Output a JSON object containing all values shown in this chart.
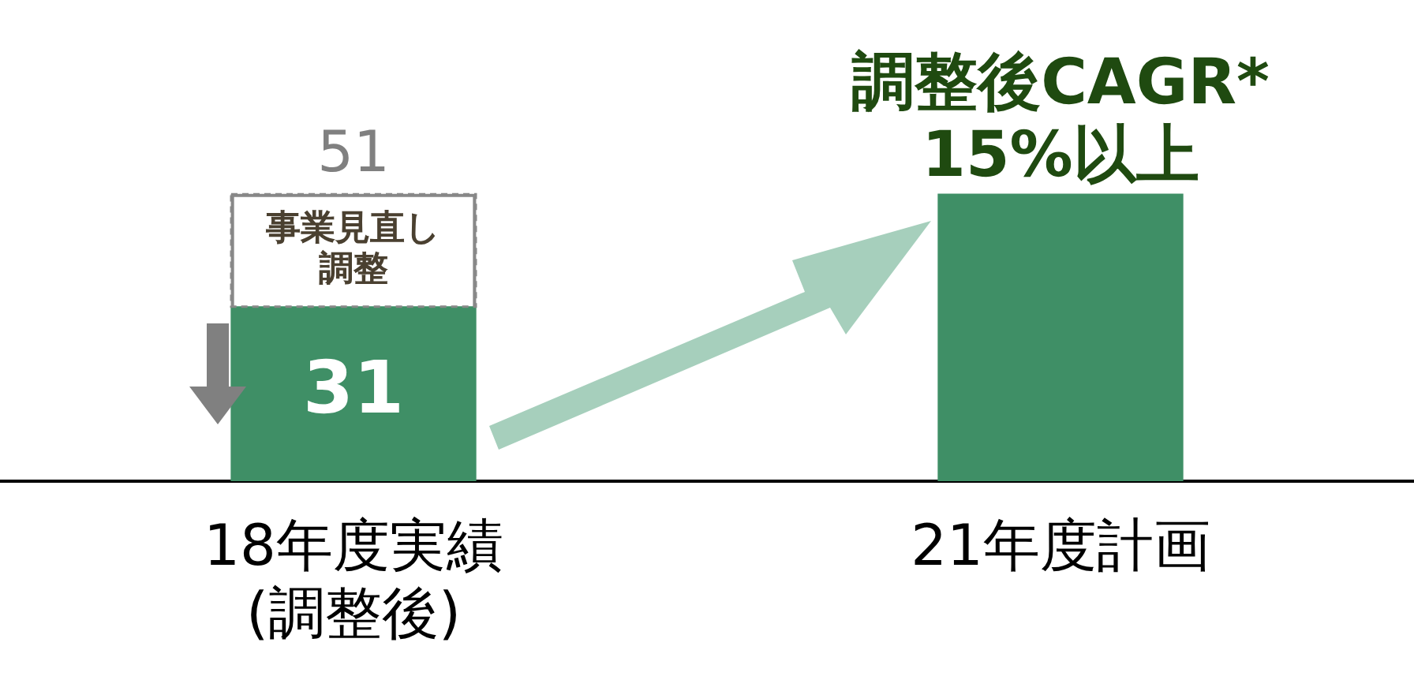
{
  "chart_data": {
    "type": "bar",
    "stacked": true,
    "categories": [
      "18年度実績\n(調整後)",
      "21年度計画"
    ],
    "series": [
      {
        "color": "#3f8f66",
        "values": [
          31,
          51
        ],
        "value_labels": [
          "31",
          null
        ]
      },
      {
        "color": "#888888",
        "values": [
          20,
          null
        ]
      }
    ],
    "totals": [
      "51",
      null
    ],
    "annotations": [
      "事業見直し調整",
      "調整後CAGR*\n15%以上"
    ],
    "legend": false
  }
}
